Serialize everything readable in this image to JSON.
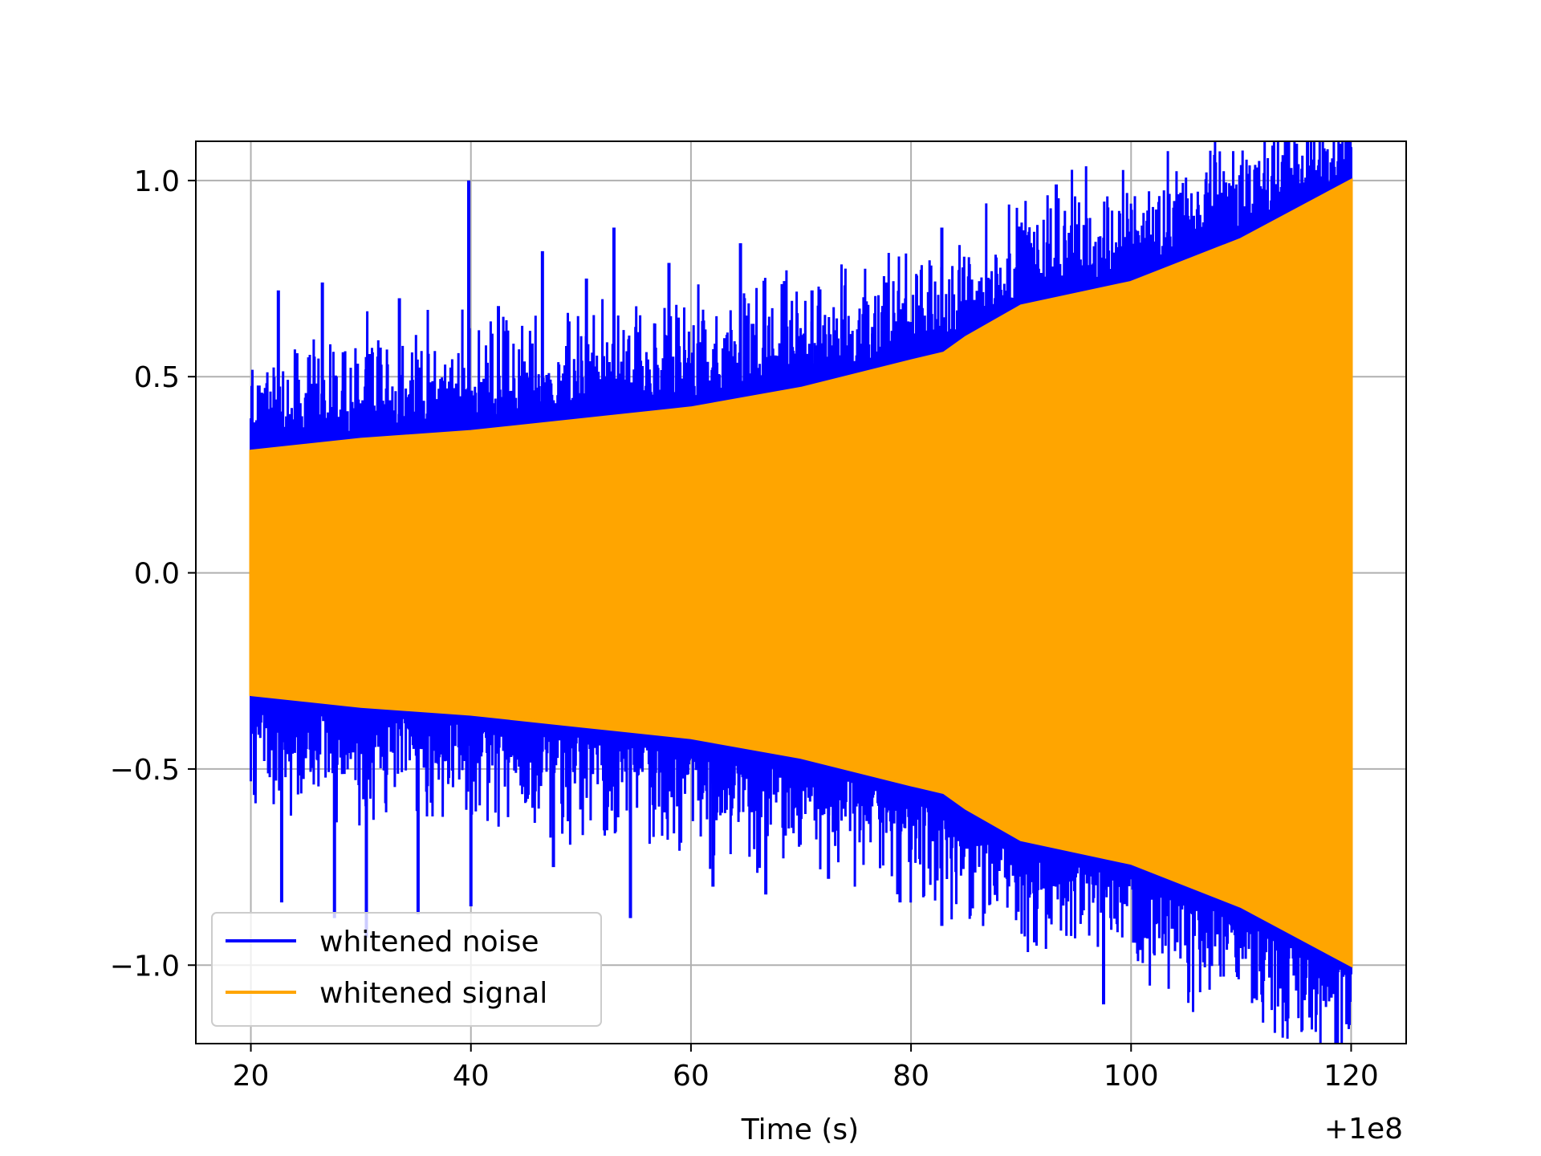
{
  "chart_data": {
    "type": "line",
    "title": "",
    "xlabel": "Time (s)",
    "ylabel": "",
    "x_offset_label": "+1e8",
    "xlim": [
      15,
      125
    ],
    "ylim": [
      -1.2,
      1.1
    ],
    "x_ticks": [
      20,
      40,
      60,
      80,
      100,
      120
    ],
    "x_tick_labels": [
      "20",
      "40",
      "60",
      "80",
      "100",
      "120"
    ],
    "y_ticks": [
      -1.0,
      -0.5,
      0.0,
      0.5,
      1.0
    ],
    "y_tick_labels": [
      "−1.0",
      "−0.5",
      "0.0",
      "0.5",
      "1.0"
    ],
    "grid": true,
    "legend_position": "lower-left",
    "series": [
      {
        "name": "whitened noise",
        "color": "#0000ff",
        "x_range": [
          20,
          120
        ],
        "description_values": {
          "peak_times": [
            22.5,
            26.5,
            30.5,
            33.5,
            39.8,
            42.5,
            46.5,
            50.5,
            53.0,
            58.0,
            64.5,
            71.0,
            76.5,
            82.8,
            88.5,
            93.2,
            97.5,
            102.5,
            107.5,
            116.8
          ],
          "peak_values": [
            0.72,
            0.74,
            0.55,
            0.7,
            1.0,
            0.68,
            0.82,
            0.75,
            0.88,
            0.79,
            0.84,
            0.72,
            0.61,
            0.88,
            0.66,
            0.99,
            0.72,
            0.71,
            0.9,
            0.6
          ],
          "trough_times": [
            22.8,
            27.6,
            30.5,
            35.2,
            40.0,
            47.5,
            54.5,
            62.0,
            66.8,
            72.5,
            79.0,
            82.8,
            88.0,
            93.2,
            97.5,
            103.0,
            110.5,
            117.0
          ],
          "trough_values": [
            -0.84,
            -0.88,
            -0.93,
            -0.87,
            -0.85,
            -0.75,
            -0.88,
            -0.8,
            -0.82,
            -0.78,
            -0.84,
            -0.9,
            -0.76,
            -0.8,
            -1.1,
            -0.77,
            -0.84,
            -1.01
          ]
        }
      },
      {
        "name": "whitened signal",
        "color": "#ffa500",
        "x_range": [
          20,
          120
        ],
        "envelope_x": [
          20,
          30,
          40,
          50,
          60,
          70,
          80,
          83,
          85,
          90,
          100,
          110,
          120
        ],
        "envelope_upper": [
          0.31,
          0.34,
          0.36,
          0.39,
          0.42,
          0.47,
          0.54,
          0.56,
          0.6,
          0.68,
          0.74,
          0.85,
          1.0
        ],
        "envelope_lower": [
          -0.31,
          -0.34,
          -0.36,
          -0.39,
          -0.42,
          -0.47,
          -0.54,
          -0.56,
          -0.6,
          -0.68,
          -0.74,
          -0.85,
          -1.0
        ]
      }
    ]
  }
}
